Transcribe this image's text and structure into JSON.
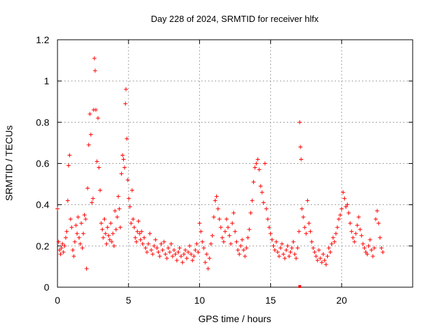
{
  "chart_data": {
    "type": "scatter",
    "title": "Day 228 of 2024, SRMTID for receiver hlfx",
    "xlabel": "GPS time / hours",
    "ylabel": "SRMTID / TECUs",
    "xlim": [
      0,
      25
    ],
    "ylim": [
      0,
      1.2
    ],
    "x_ticks": [
      0,
      5,
      10,
      15,
      20
    ],
    "x_tick_labels": [
      "0",
      "5",
      "10",
      "15",
      "20"
    ],
    "y_ticks": [
      0,
      0.2,
      0.4,
      0.6,
      0.8,
      1.0,
      1.2
    ],
    "y_tick_labels": [
      "0",
      "0.2",
      "0.4",
      "0.6",
      "0.8",
      "1",
      "1.2"
    ],
    "grid": true,
    "marker": "+",
    "series": [
      {
        "name": "SRMTID",
        "color": "#ff0000",
        "x": [
          0.0,
          0.08,
          0.15,
          0.22,
          0.28,
          0.35,
          0.42,
          0.5,
          0.58,
          0.65,
          0.72,
          0.78,
          0.85,
          0.92,
          1.0,
          1.08,
          1.15,
          1.22,
          1.3,
          1.38,
          1.45,
          1.52,
          1.6,
          1.68,
          1.75,
          1.82,
          1.9,
          1.98,
          2.05,
          2.12,
          2.2,
          2.28,
          2.35,
          2.42,
          2.5,
          2.55,
          2.6,
          2.65,
          2.7,
          2.78,
          2.85,
          2.92,
          3.0,
          3.08,
          3.15,
          3.22,
          3.3,
          3.38,
          3.45,
          3.52,
          3.6,
          3.68,
          3.75,
          3.82,
          3.9,
          3.98,
          4.05,
          4.12,
          4.2,
          4.28,
          4.35,
          4.42,
          4.5,
          4.58,
          4.65,
          4.72,
          4.78,
          4.82,
          4.88,
          4.95,
          5.02,
          5.1,
          5.18,
          5.25,
          5.32,
          5.4,
          5.48,
          5.55,
          5.62,
          5.7,
          5.78,
          5.85,
          5.92,
          6.0,
          6.1,
          6.2,
          6.3,
          6.4,
          6.5,
          6.6,
          6.7,
          6.8,
          6.9,
          7.0,
          7.1,
          7.2,
          7.3,
          7.4,
          7.5,
          7.6,
          7.7,
          7.8,
          7.9,
          8.0,
          8.1,
          8.2,
          8.3,
          8.4,
          8.5,
          8.6,
          8.7,
          8.8,
          8.9,
          9.0,
          9.1,
          9.2,
          9.3,
          9.4,
          9.5,
          9.6,
          9.7,
          9.8,
          9.9,
          10.0,
          10.1,
          10.2,
          10.3,
          10.4,
          10.5,
          10.6,
          10.7,
          10.8,
          10.9,
          11.0,
          11.1,
          11.2,
          11.3,
          11.4,
          11.5,
          11.6,
          11.7,
          11.8,
          11.9,
          12.0,
          12.1,
          12.2,
          12.3,
          12.4,
          12.5,
          12.6,
          12.7,
          12.8,
          12.9,
          13.0,
          13.1,
          13.2,
          13.3,
          13.4,
          13.5,
          13.6,
          13.7,
          13.8,
          13.9,
          14.0,
          14.1,
          14.2,
          14.3,
          14.4,
          14.5,
          14.6,
          14.7,
          14.8,
          14.9,
          15.0,
          15.1,
          15.2,
          15.3,
          15.4,
          15.5,
          15.6,
          15.7,
          15.8,
          15.9,
          16.0,
          16.1,
          16.2,
          16.3,
          16.4,
          16.5,
          16.6,
          16.7,
          16.8,
          16.9,
          17.0,
          17.05,
          17.1,
          17.15,
          17.2,
          17.3,
          17.4,
          17.5,
          17.6,
          17.7,
          17.8,
          17.9,
          18.0,
          18.1,
          18.2,
          18.3,
          18.4,
          18.5,
          18.6,
          18.7,
          18.8,
          18.9,
          19.0,
          19.1,
          19.2,
          19.3,
          19.4,
          19.5,
          19.6,
          19.7,
          19.8,
          19.9,
          20.0,
          20.1,
          20.2,
          20.3,
          20.4,
          20.5,
          20.6,
          20.7,
          20.8,
          20.9,
          21.0,
          21.1,
          21.2,
          21.3,
          21.4,
          21.5,
          21.6,
          21.7,
          21.8,
          21.9,
          22.0,
          22.1,
          22.2,
          22.3,
          22.4,
          22.5,
          22.6,
          22.7,
          22.8,
          22.9
        ],
        "y": [
          0.38,
          0.22,
          0.18,
          0.16,
          0.19,
          0.21,
          0.17,
          0.2,
          0.24,
          0.27,
          0.42,
          0.59,
          0.64,
          0.33,
          0.29,
          0.18,
          0.15,
          0.22,
          0.3,
          0.26,
          0.34,
          0.24,
          0.21,
          0.31,
          0.19,
          0.26,
          0.35,
          0.33,
          0.09,
          0.48,
          0.69,
          0.84,
          0.74,
          0.41,
          0.43,
          0.86,
          1.11,
          1.05,
          0.86,
          0.61,
          0.82,
          0.58,
          0.47,
          0.31,
          0.28,
          0.24,
          0.33,
          0.26,
          0.21,
          0.29,
          0.25,
          0.23,
          0.31,
          0.22,
          0.26,
          0.2,
          0.37,
          0.28,
          0.34,
          0.44,
          0.38,
          0.29,
          0.55,
          0.64,
          0.62,
          0.58,
          0.89,
          0.96,
          0.72,
          0.52,
          0.43,
          0.39,
          0.31,
          0.47,
          0.33,
          0.29,
          0.24,
          0.22,
          0.27,
          0.32,
          0.26,
          0.23,
          0.27,
          0.21,
          0.24,
          0.19,
          0.17,
          0.21,
          0.26,
          0.18,
          0.16,
          0.2,
          0.23,
          0.19,
          0.17,
          0.15,
          0.21,
          0.18,
          0.22,
          0.16,
          0.14,
          0.19,
          0.17,
          0.21,
          0.15,
          0.18,
          0.16,
          0.13,
          0.17,
          0.19,
          0.15,
          0.12,
          0.16,
          0.18,
          0.14,
          0.17,
          0.2,
          0.16,
          0.13,
          0.15,
          0.18,
          0.21,
          0.17,
          0.31,
          0.27,
          0.22,
          0.19,
          0.12,
          0.16,
          0.09,
          0.14,
          0.21,
          0.25,
          0.34,
          0.42,
          0.44,
          0.38,
          0.33,
          0.29,
          0.24,
          0.22,
          0.27,
          0.33,
          0.29,
          0.25,
          0.21,
          0.31,
          0.36,
          0.27,
          0.22,
          0.18,
          0.16,
          0.2,
          0.23,
          0.18,
          0.15,
          0.19,
          0.24,
          0.28,
          0.36,
          0.42,
          0.51,
          0.58,
          0.6,
          0.62,
          0.57,
          0.49,
          0.46,
          0.41,
          0.6,
          0.38,
          0.33,
          0.29,
          0.26,
          0.23,
          0.2,
          0.18,
          0.22,
          0.17,
          0.15,
          0.19,
          0.21,
          0.16,
          0.14,
          0.18,
          0.2,
          0.15,
          0.17,
          0.19,
          0.22,
          0.16,
          0.14,
          0.19,
          0.27,
          0.8,
          0.68,
          0.62,
          0.38,
          0.34,
          0.29,
          0.26,
          0.42,
          0.31,
          0.27,
          0.22,
          0.19,
          0.17,
          0.15,
          0.13,
          0.18,
          0.14,
          0.12,
          0.16,
          0.13,
          0.11,
          0.15,
          0.19,
          0.17,
          0.21,
          0.24,
          0.22,
          0.26,
          0.29,
          0.33,
          0.35,
          0.38,
          0.46,
          0.43,
          0.39,
          0.4,
          0.36,
          0.31,
          0.27,
          0.24,
          0.22,
          0.26,
          0.3,
          0.34,
          0.28,
          0.25,
          0.21,
          0.19,
          0.17,
          0.16,
          0.2,
          0.23,
          0.18,
          0.15,
          0.19,
          0.33,
          0.37,
          0.31,
          0.24,
          0.19,
          0.17
        ]
      }
    ],
    "annotations": [
      {
        "x": 17.05,
        "y": 0.0,
        "marker": "square"
      }
    ]
  }
}
